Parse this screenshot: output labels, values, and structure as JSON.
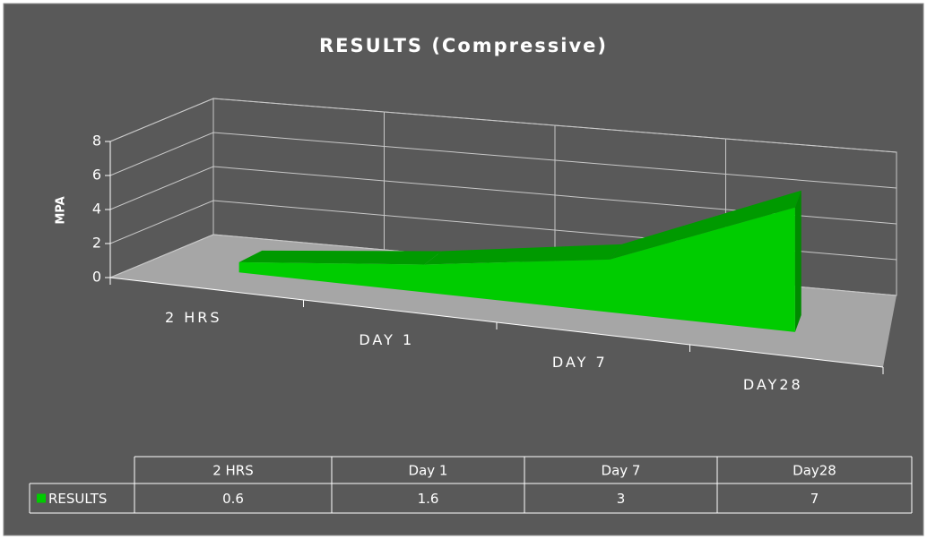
{
  "chart_data": {
    "type": "area3d",
    "title": "RESULTS (Compressive)",
    "y_label": "MPA",
    "categories": [
      "2 HRS",
      "DAY 1",
      "DAY 7",
      "DAY28"
    ],
    "table_categories": [
      "2 HRS",
      "Day 1",
      "Day 7",
      "Day28"
    ],
    "series": [
      {
        "name": "RESULTS",
        "color": "#00cc00",
        "values": [
          0.6,
          1.6,
          3,
          7
        ]
      }
    ],
    "ylim": [
      0,
      8
    ],
    "yticks": [
      0,
      2,
      4,
      6,
      8
    ],
    "grid": true,
    "data_table": true
  }
}
